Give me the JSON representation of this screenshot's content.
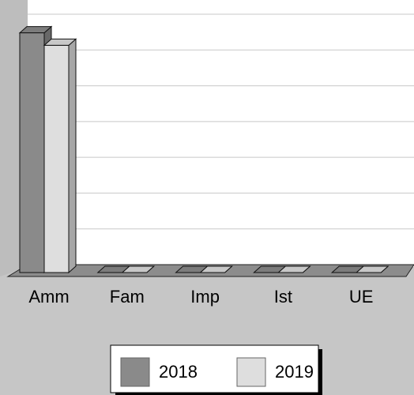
{
  "chart_data": {
    "type": "bar3d",
    "categories": [
      "Amm",
      "Fam",
      "Imp",
      "Ist",
      "UE"
    ],
    "series": [
      {
        "name": "2018",
        "color": "#8a8a8a",
        "values": [
          6.7,
          0,
          0,
          0,
          0
        ]
      },
      {
        "name": "2019",
        "color": "#dedede",
        "values": [
          6.35,
          0,
          0,
          0,
          0
        ]
      }
    ],
    "ylim": [
      0,
      7
    ],
    "yticks": [
      0,
      1,
      2,
      3,
      4,
      5,
      6,
      7
    ],
    "grid": true
  }
}
